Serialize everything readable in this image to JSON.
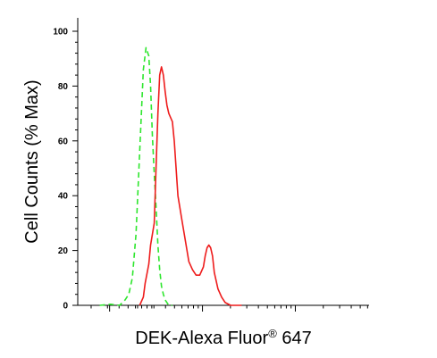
{
  "chart_data": {
    "type": "line",
    "xlabel_main": "DEK-Alexa Fluor",
    "xlabel_reg": "®",
    "xlabel_tail": " 647",
    "ylabel": "Cell Counts (% Max)",
    "ylim": [
      0,
      100
    ],
    "xlim": [
      0,
      320
    ],
    "yticks": [
      "0",
      "20",
      "40",
      "60",
      "80",
      "100"
    ],
    "grid": false,
    "series": [
      {
        "color": "#2ee62e",
        "style": "dashed",
        "points": [
          [
            24,
            0
          ],
          [
            36,
            0.4
          ],
          [
            46,
            0
          ],
          [
            52,
            2
          ],
          [
            56,
            4
          ],
          [
            60,
            10
          ],
          [
            64,
            26
          ],
          [
            68,
            56
          ],
          [
            72,
            86
          ],
          [
            75,
            94
          ],
          [
            78,
            91
          ],
          [
            80,
            80
          ],
          [
            82,
            62
          ],
          [
            84,
            48
          ],
          [
            86,
            36
          ],
          [
            88,
            22
          ],
          [
            90,
            13
          ],
          [
            92,
            7
          ],
          [
            94,
            4
          ],
          [
            96,
            2
          ],
          [
            98,
            1
          ],
          [
            100,
            0
          ],
          [
            104,
            0
          ]
        ]
      },
      {
        "color": "#ee1c1c",
        "style": "solid",
        "points": [
          [
            68,
            0
          ],
          [
            72,
            3
          ],
          [
            74,
            8
          ],
          [
            78,
            15
          ],
          [
            80,
            22
          ],
          [
            84,
            30
          ],
          [
            86,
            50
          ],
          [
            88,
            70
          ],
          [
            90,
            84
          ],
          [
            92,
            87
          ],
          [
            94,
            84
          ],
          [
            96,
            78
          ],
          [
            98,
            73
          ],
          [
            100,
            70
          ],
          [
            104,
            67
          ],
          [
            106,
            60
          ],
          [
            110,
            40
          ],
          [
            114,
            32
          ],
          [
            118,
            24
          ],
          [
            122,
            16
          ],
          [
            126,
            13
          ],
          [
            130,
            11
          ],
          [
            134,
            11
          ],
          [
            138,
            14
          ],
          [
            140,
            18
          ],
          [
            142,
            21
          ],
          [
            144,
            22
          ],
          [
            146,
            21
          ],
          [
            148,
            18
          ],
          [
            150,
            12
          ],
          [
            154,
            6
          ],
          [
            158,
            3
          ],
          [
            162,
            1
          ],
          [
            168,
            0
          ],
          [
            180,
            0
          ]
        ]
      }
    ]
  }
}
